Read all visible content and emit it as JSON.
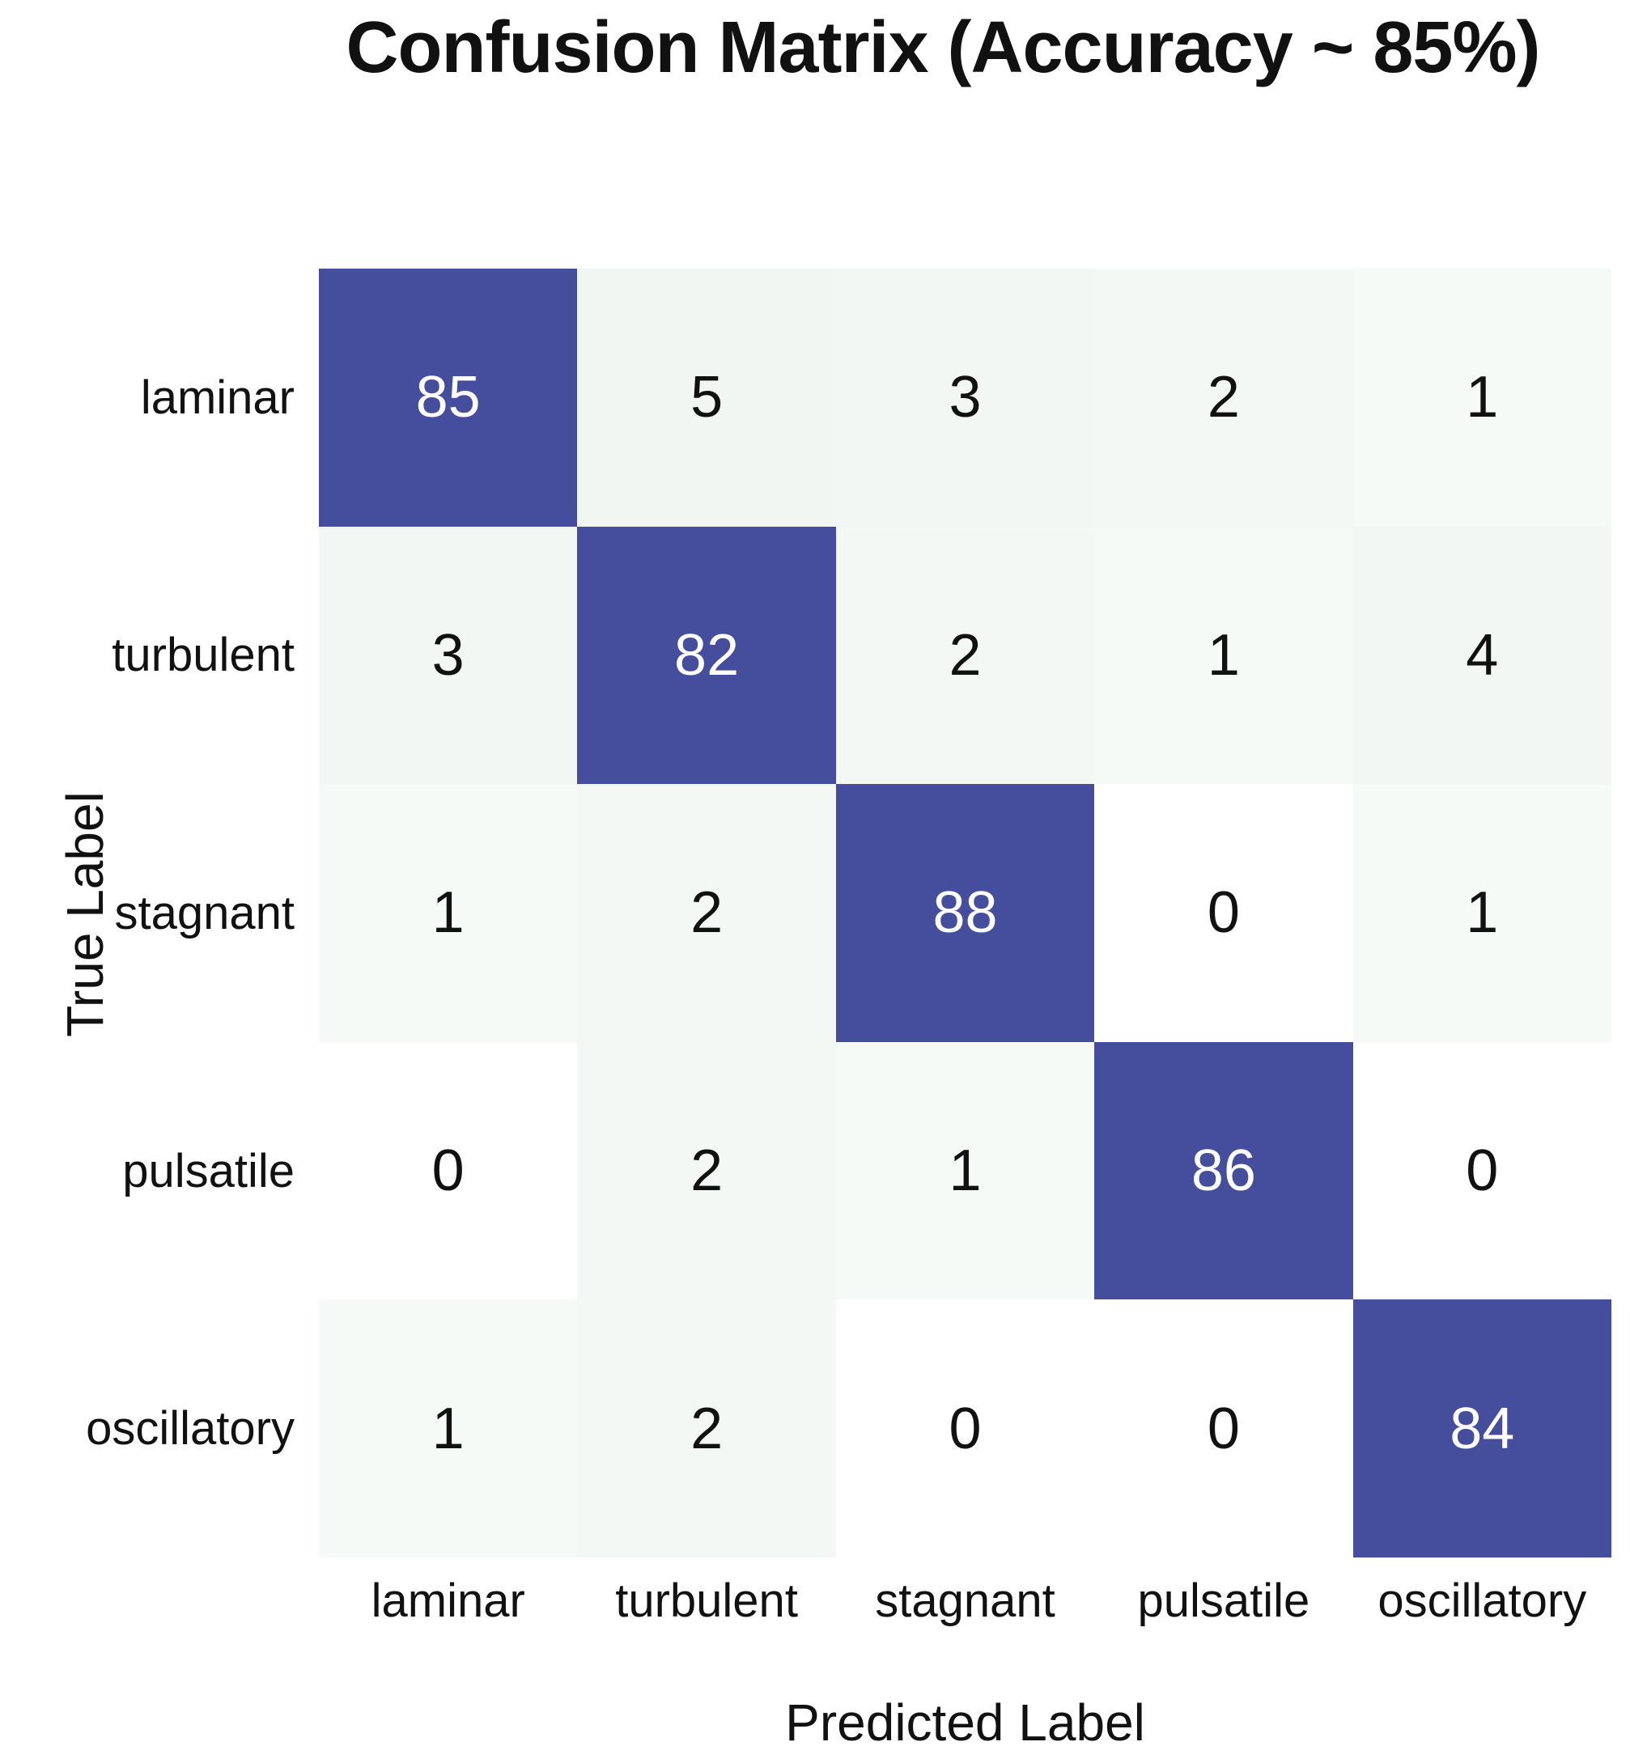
{
  "title": "Confusion Matrix (Accuracy ~ 85%)",
  "chart_data": {
    "type": "heatmap",
    "title": "Confusion Matrix (Accuracy ~ 85%)",
    "xlabel": "Predicted Label",
    "ylabel": "True Label",
    "x_categories": [
      "laminar",
      "turbulent",
      "stagnant",
      "pulsatile",
      "oscillatory"
    ],
    "y_categories": [
      "laminar",
      "turbulent",
      "stagnant",
      "pulsatile",
      "oscillatory"
    ],
    "rows": [
      [
        85,
        5,
        3,
        2,
        1
      ],
      [
        3,
        82,
        2,
        1,
        4
      ],
      [
        1,
        2,
        88,
        0,
        1
      ],
      [
        0,
        2,
        1,
        86,
        0
      ],
      [
        1,
        2,
        0,
        0,
        84
      ]
    ],
    "legend": "none",
    "grid": "off",
    "colors": {
      "diagonal": "#444e9d",
      "diagonal_text": "#ffffff",
      "zero_cell": "#ffffff",
      "low_shades": {
        "1": "#f6faf7",
        "2": "#f4f8f5",
        "3": "#f3f7f4",
        "4": "#f2f7f3",
        "5": "#f1f6f2"
      },
      "cell_text": "#111111",
      "label_text": "#111111"
    }
  }
}
